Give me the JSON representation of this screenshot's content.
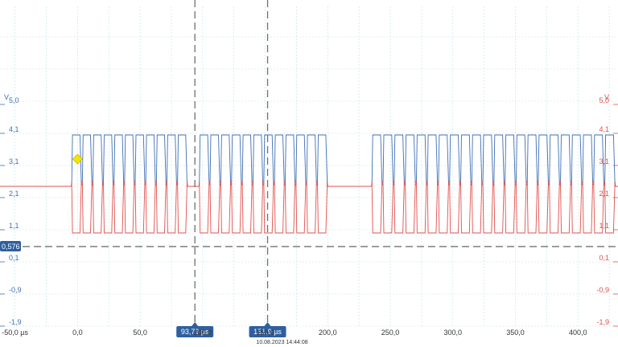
{
  "chart_data": {
    "type": "line",
    "x_unit_label": "µs",
    "x_range": [
      -62,
      432
    ],
    "x_ticks": [
      "-50,0 µs",
      "0,0",
      "50,0",
      "100,0",
      "150,0",
      "200,0",
      "250,0",
      "300,0",
      "350,0",
      "400,0"
    ],
    "x_tick_values": [
      -50,
      0,
      50,
      100,
      150,
      200,
      250,
      300,
      350,
      400
    ],
    "y_range": [
      -1.9,
      5.0
    ],
    "y_unit_left": "V",
    "y_unit_right": "V",
    "y_ticks": [
      "5,0",
      "4,1",
      "3,1",
      "2,1",
      "1,1",
      "0,1",
      "-0,9",
      "-1,9"
    ],
    "y_tick_values": [
      5.0,
      4.1,
      3.1,
      2.1,
      1.1,
      0.1,
      -0.9,
      -1.9
    ],
    "grid": true,
    "series": [
      {
        "color": "#3f6fb5",
        "idle": 2.45,
        "high": 4.05,
        "low": 2.5
      },
      {
        "color": "#e0504d",
        "idle": 2.45,
        "high": 2.6,
        "low": 1.0
      }
    ],
    "bursts": [
      {
        "start": -5,
        "end": 88,
        "bits": 11
      },
      {
        "start": 97,
        "end": 200,
        "bits": 12
      },
      {
        "start": 235,
        "end": 430,
        "bits": 22
      }
    ],
    "cursors": {
      "vertical": [
        {
          "value": 93.79,
          "label": "93,79 µs"
        },
        {
          "value": 151.9,
          "label": "151,9 µs"
        }
      ],
      "horizontal": {
        "value": 0.576,
        "label": "0,576"
      }
    },
    "trigger": {
      "x": 0,
      "y": 3.3,
      "color": "#f5e400"
    },
    "timestamp": "10.08.2023 14:44:08"
  }
}
